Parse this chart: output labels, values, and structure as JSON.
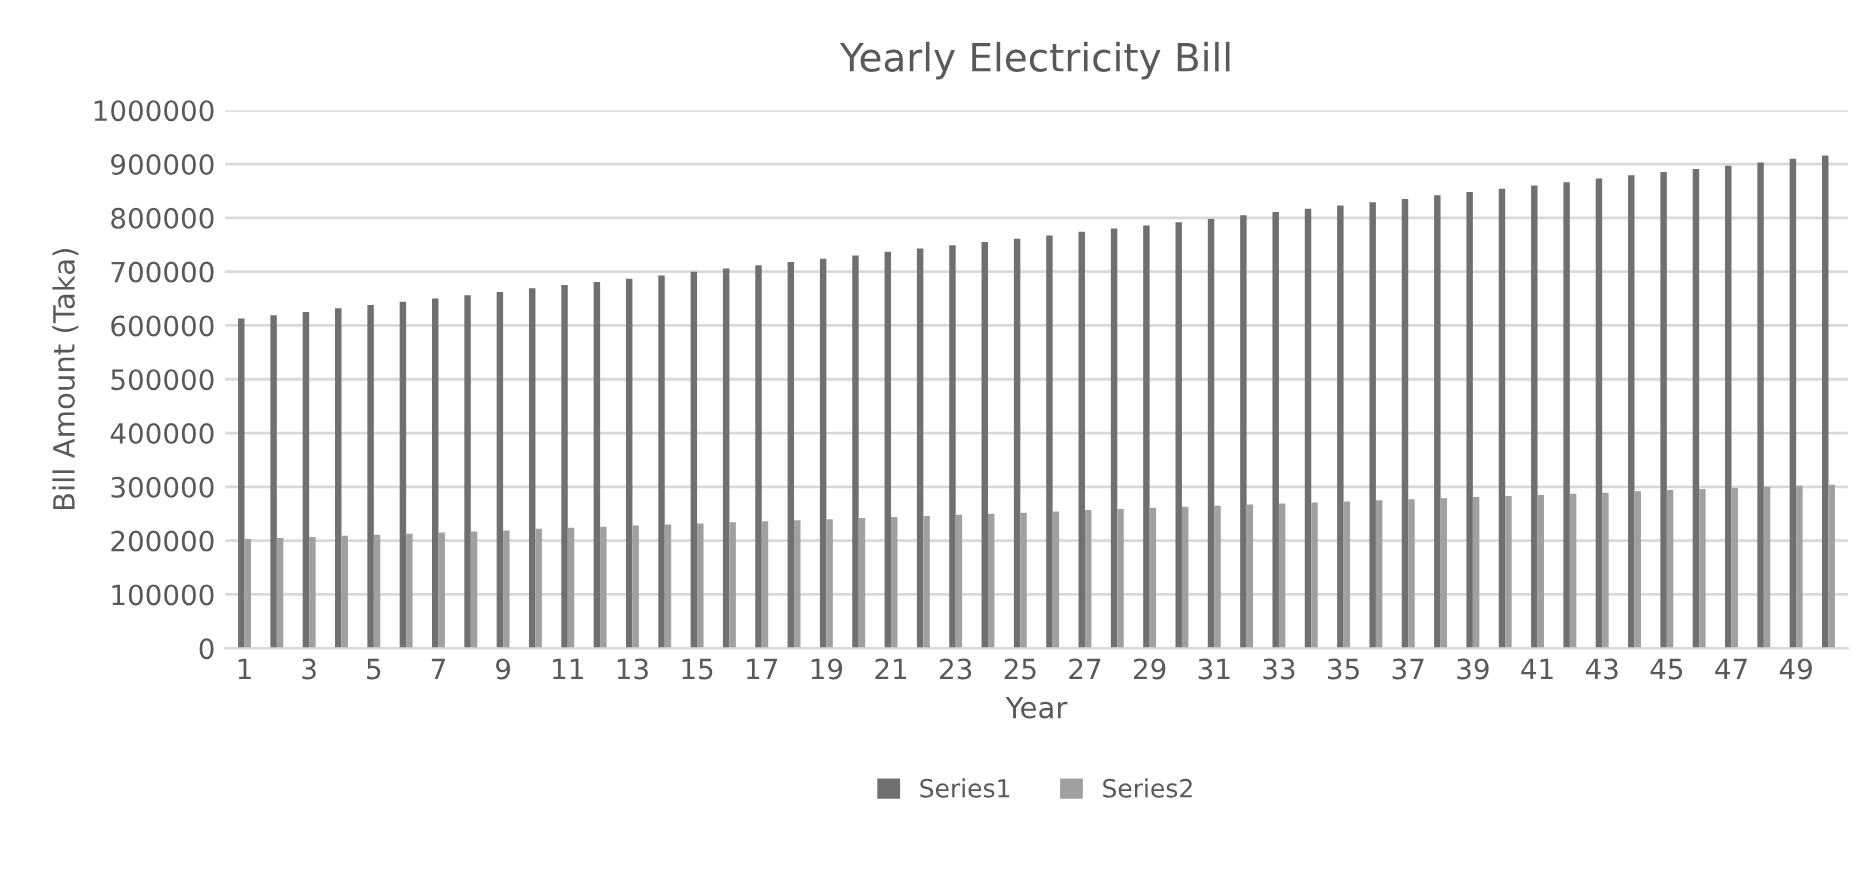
{
  "chart_data": {
    "type": "bar",
    "title": "Yearly Electricity Bill",
    "xlabel": "Year",
    "ylabel": "Bill Amount (Taka)",
    "categories": [
      "1",
      null,
      "3",
      null,
      "5",
      null,
      "7",
      null,
      "9",
      null,
      "11",
      null,
      "13",
      null,
      "15",
      null,
      "17",
      null,
      "19",
      null,
      "21",
      null,
      "23",
      null,
      "25",
      null,
      "27",
      null,
      "29",
      null,
      "31",
      null,
      "33",
      null,
      "35",
      null,
      "37",
      null,
      "39",
      null,
      "41",
      null,
      "43",
      null,
      "45",
      null,
      "47",
      null,
      "49",
      null
    ],
    "series": [
      {
        "name": "Series1",
        "color": "#707070",
        "values": [
          613000,
          619000,
          625000,
          632000,
          638000,
          644000,
          650000,
          656000,
          662000,
          669000,
          675000,
          681000,
          687000,
          693000,
          700000,
          706000,
          712000,
          718000,
          724000,
          730000,
          737000,
          743000,
          749000,
          755000,
          761000,
          767000,
          774000,
          780000,
          786000,
          792000,
          798000,
          805000,
          811000,
          817000,
          823000,
          829000,
          835000,
          842000,
          848000,
          854000,
          860000,
          866000,
          873000,
          879000,
          885000,
          891000,
          897000,
          903000,
          910000,
          916000
        ]
      },
      {
        "name": "Series2",
        "color": "#a0a0a0",
        "values": [
          203000,
          205000,
          207000,
          209000,
          211000,
          213000,
          215000,
          217000,
          219000,
          222000,
          224000,
          226000,
          228000,
          230000,
          232000,
          234000,
          236000,
          238000,
          240000,
          242000,
          244000,
          246000,
          248000,
          250000,
          252000,
          254000,
          257000,
          259000,
          261000,
          263000,
          265000,
          267000,
          269000,
          271000,
          273000,
          275000,
          277000,
          279000,
          281000,
          283000,
          285000,
          287000,
          289000,
          292000,
          294000,
          296000,
          298000,
          300000,
          302000,
          304000
        ]
      }
    ],
    "ylim": [
      0,
      1000000
    ],
    "yticks": [
      0,
      100000,
      200000,
      300000,
      400000,
      500000,
      600000,
      700000,
      800000,
      900000,
      1000000
    ],
    "grid": "y",
    "legend": "bottom"
  }
}
